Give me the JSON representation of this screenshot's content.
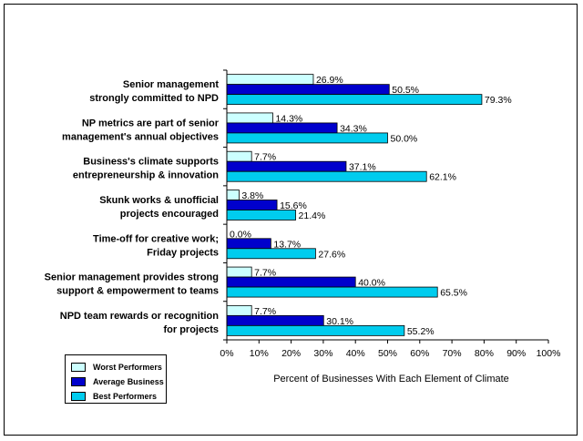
{
  "chart_data": {
    "type": "bar",
    "orientation": "horizontal",
    "categories": [
      [
        "Senior management",
        "strongly committed to NPD"
      ],
      [
        "NP metrics are part of senior",
        "management's annual objectives"
      ],
      [
        "Business's climate supports",
        "entrepreneurship & innovation"
      ],
      [
        "Skunk works & unofficial",
        "projects encouraged"
      ],
      [
        "Time-off for creative work;",
        "Friday projects"
      ],
      [
        "Senior management provides strong",
        "support & empowerment to teams"
      ],
      [
        "NPD team rewards or recognition",
        "for projects"
      ]
    ],
    "series": [
      {
        "name": "Worst Performers",
        "color": "#ccffff",
        "values": [
          26.9,
          14.3,
          7.7,
          3.8,
          0.0,
          7.7,
          7.7
        ],
        "labels": [
          "26.9%",
          "14.3%",
          "7.7%",
          "3.8%",
          "0.0%",
          "7.7%",
          "7.7%"
        ]
      },
      {
        "name": "Average Business",
        "color": "#0000cc",
        "values": [
          50.5,
          34.3,
          37.1,
          15.6,
          13.7,
          40.0,
          30.1
        ],
        "labels": [
          "50.5%",
          "34.3%",
          "37.1%",
          "15.6%",
          "13.7%",
          "40.0%",
          "30.1%"
        ]
      },
      {
        "name": "Best Performers",
        "color": "#00ccee",
        "values": [
          79.3,
          50.0,
          62.1,
          21.4,
          27.6,
          65.5,
          55.2
        ],
        "labels": [
          "79.3%",
          "50.0%",
          "62.1%",
          "21.4%",
          "27.6%",
          "65.5%",
          "55.2%"
        ]
      }
    ],
    "xticks": [
      "0%",
      "10%",
      "20%",
      "30%",
      "40%",
      "50%",
      "60%",
      "70%",
      "80%",
      "90%",
      "100%"
    ],
    "xlim": [
      0,
      100
    ],
    "xlabel": "Percent of Businesses With Each Element of Climate",
    "legend_position": "bottom-left"
  }
}
